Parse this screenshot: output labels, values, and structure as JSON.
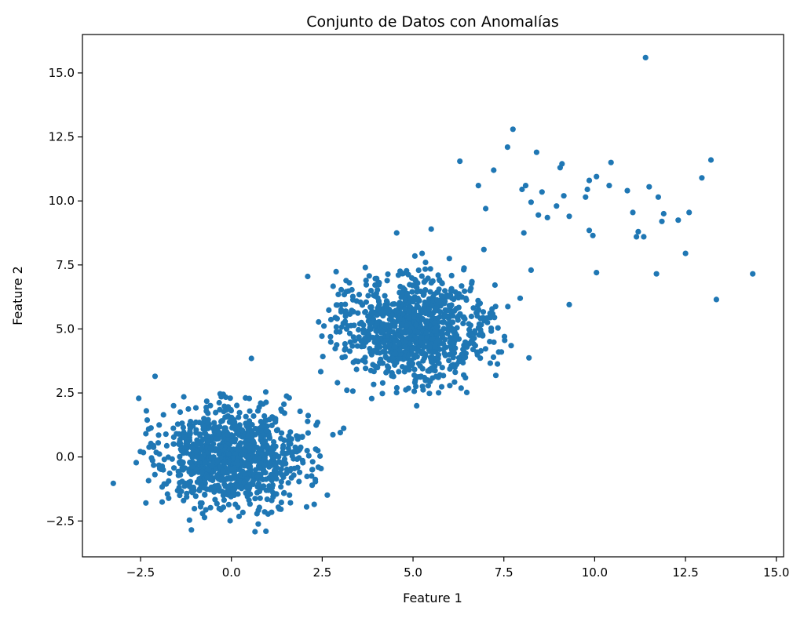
{
  "chart_data": {
    "type": "scatter",
    "title": "Conjunto de Datos con Anomalías",
    "xlabel": "Feature 1",
    "ylabel": "Feature 2",
    "xlim": [
      -4.1,
      15.2
    ],
    "ylim": [
      -3.9,
      16.5
    ],
    "xticks": [
      -2.5,
      0.0,
      2.5,
      5.0,
      7.5,
      10.0,
      12.5,
      15.0
    ],
    "yticks": [
      -2.5,
      0.0,
      2.5,
      5.0,
      7.5,
      10.0,
      12.5,
      15.0
    ],
    "grid": false,
    "marker_color": "#1f77b4",
    "clusters": [
      {
        "center": [
          0.0,
          0.0
        ],
        "std": 1.0,
        "count": 1000
      },
      {
        "center": [
          5.0,
          5.0
        ],
        "std": 1.0,
        "count": 1000
      }
    ],
    "points": [
      [
        -3.25,
        -1.03
      ],
      [
        -2.62,
        -0.22
      ],
      [
        -2.55,
        2.29
      ],
      [
        -2.1,
        3.15
      ],
      [
        -1.1,
        -2.85
      ],
      [
        0.55,
        3.85
      ],
      [
        2.07,
        -1.95
      ],
      [
        2.28,
        -1.85
      ],
      [
        2.64,
        -1.49
      ],
      [
        0.65,
        -2.92
      ],
      [
        0.95,
        -2.9
      ],
      [
        3.09,
        1.12
      ],
      [
        2.1,
        7.05
      ],
      [
        4.55,
        8.75
      ],
      [
        5.5,
        8.9
      ],
      [
        5.05,
        7.85
      ],
      [
        5.25,
        7.95
      ],
      [
        6.0,
        7.75
      ],
      [
        6.95,
        8.1
      ],
      [
        8.19,
        3.87
      ],
      [
        5.1,
        2.0
      ],
      [
        2.92,
        2.9
      ],
      [
        7.7,
        4.35
      ],
      [
        6.48,
        2.52
      ],
      [
        5.45,
        2.48
      ],
      [
        6.29,
        11.55
      ],
      [
        6.8,
        10.6
      ],
      [
        7.22,
        11.2
      ],
      [
        7.6,
        12.1
      ],
      [
        7.75,
        12.8
      ],
      [
        8.4,
        11.9
      ],
      [
        8.0,
        10.45
      ],
      [
        8.1,
        10.6
      ],
      [
        8.55,
        10.35
      ],
      [
        8.25,
        9.95
      ],
      [
        8.45,
        9.45
      ],
      [
        8.7,
        9.35
      ],
      [
        7.0,
        9.7
      ],
      [
        8.05,
        8.75
      ],
      [
        9.05,
        11.3
      ],
      [
        9.1,
        11.45
      ],
      [
        9.85,
        10.8
      ],
      [
        10.05,
        10.95
      ],
      [
        10.4,
        10.6
      ],
      [
        10.45,
        11.5
      ],
      [
        9.8,
        10.45
      ],
      [
        9.15,
        10.2
      ],
      [
        9.75,
        10.15
      ],
      [
        8.95,
        9.8
      ],
      [
        9.3,
        9.4
      ],
      [
        9.85,
        8.85
      ],
      [
        9.95,
        8.65
      ],
      [
        10.05,
        7.2
      ],
      [
        8.25,
        7.3
      ],
      [
        7.95,
        6.2
      ],
      [
        9.3,
        5.95
      ],
      [
        10.9,
        10.4
      ],
      [
        11.5,
        10.55
      ],
      [
        11.4,
        15.6
      ],
      [
        11.75,
        10.15
      ],
      [
        11.05,
        9.55
      ],
      [
        11.9,
        9.5
      ],
      [
        12.3,
        9.25
      ],
      [
        11.85,
        9.2
      ],
      [
        11.2,
        8.8
      ],
      [
        11.15,
        8.6
      ],
      [
        11.35,
        8.6
      ],
      [
        11.7,
        7.15
      ],
      [
        12.6,
        9.55
      ],
      [
        12.95,
        10.9
      ],
      [
        13.2,
        11.6
      ],
      [
        12.5,
        7.95
      ],
      [
        13.35,
        6.15
      ],
      [
        14.35,
        7.15
      ]
    ]
  }
}
